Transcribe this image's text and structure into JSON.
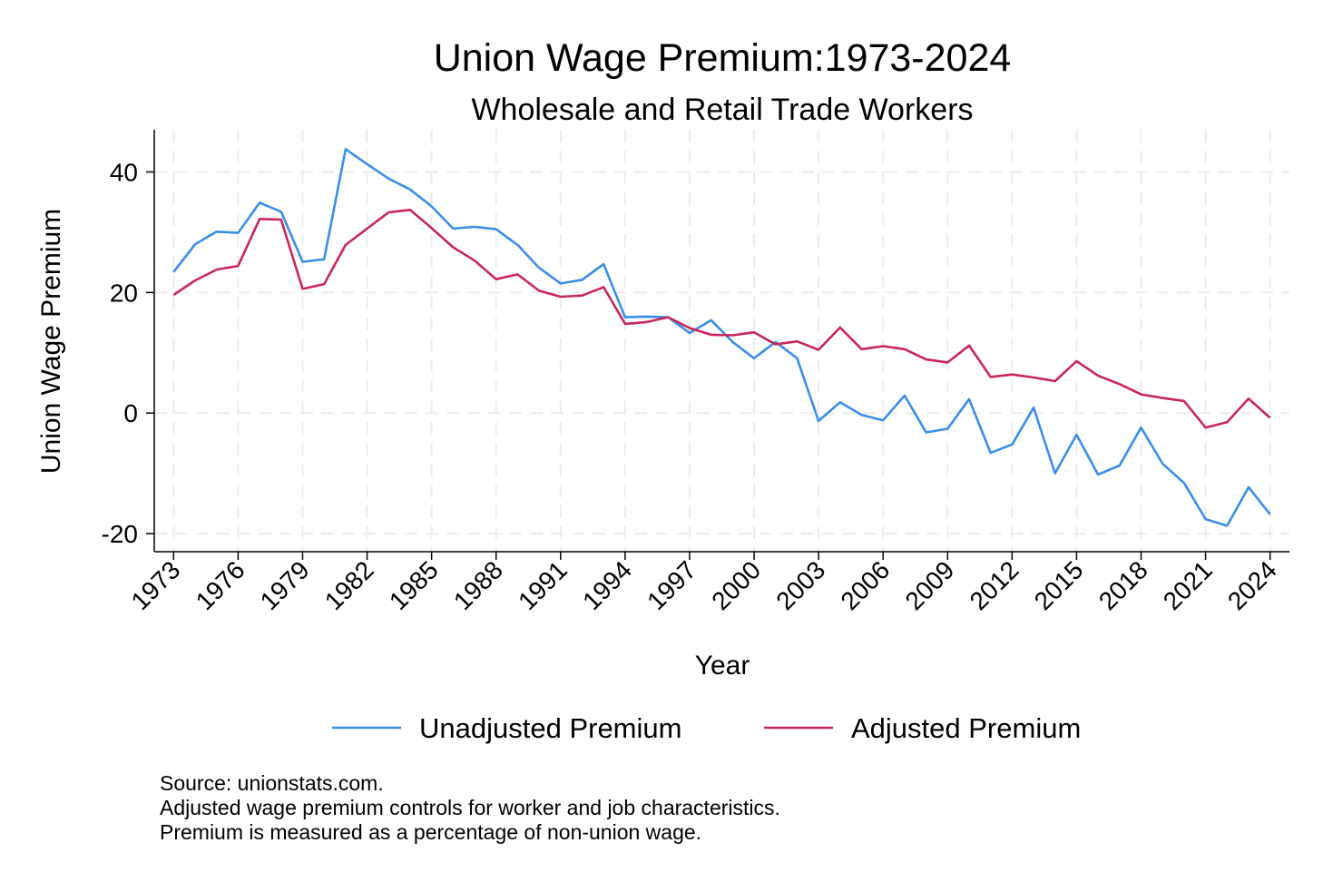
{
  "chart_data": {
    "type": "line",
    "title": "Union Wage Premium:1973-2024",
    "subtitle": "Wholesale and Retail Trade Workers",
    "xlabel": "Year",
    "ylabel": "Union Wage Premium",
    "x": [
      1973,
      1974,
      1975,
      1976,
      1977,
      1978,
      1979,
      1980,
      1981,
      1982,
      1983,
      1984,
      1985,
      1986,
      1987,
      1988,
      1989,
      1990,
      1991,
      1992,
      1993,
      1994,
      1995,
      1996,
      1997,
      1998,
      1999,
      2000,
      2001,
      2002,
      2003,
      2004,
      2005,
      2006,
      2007,
      2008,
      2009,
      2010,
      2011,
      2012,
      2013,
      2014,
      2015,
      2016,
      2017,
      2018,
      2019,
      2020,
      2021,
      2022,
      2023,
      2024
    ],
    "x_ticks": [
      1973,
      1976,
      1979,
      1982,
      1985,
      1988,
      1991,
      1994,
      1997,
      2000,
      2003,
      2006,
      2009,
      2012,
      2015,
      2018,
      2021,
      2024
    ],
    "y_ticks": [
      -20,
      0,
      20,
      40
    ],
    "xlim": [
      1972.1,
      2024.9
    ],
    "ylim": [
      -23,
      47
    ],
    "grid": true,
    "legend_position": "bottom",
    "series": [
      {
        "name": "Unadjusted Premium",
        "color": "#3a8ee8",
        "values": [
          23.4,
          28.0,
          30.1,
          29.9,
          34.9,
          33.4,
          25.1,
          25.5,
          43.8,
          41.3,
          38.9,
          37.1,
          34.3,
          30.6,
          30.9,
          30.5,
          27.9,
          24.1,
          21.5,
          22.1,
          24.7,
          15.9,
          16.0,
          15.9,
          13.3,
          15.4,
          11.8,
          9.1,
          11.8,
          9.1,
          -1.3,
          1.8,
          -0.3,
          -1.2,
          2.9,
          -3.2,
          -2.6,
          2.3,
          -6.6,
          -5.2,
          0.9,
          -10.0,
          -3.6,
          -10.2,
          -8.7,
          -2.4,
          -8.4,
          -11.6,
          -17.6,
          -18.7,
          -12.3,
          -16.8
        ]
      },
      {
        "name": "Adjusted Premium",
        "color": "#c8265a",
        "values": [
          19.6,
          22.0,
          23.8,
          24.4,
          32.2,
          32.1,
          20.6,
          21.4,
          27.9,
          30.6,
          33.3,
          33.7,
          30.7,
          27.5,
          25.3,
          22.2,
          23.0,
          20.3,
          19.3,
          19.5,
          20.9,
          14.8,
          15.1,
          15.9,
          14.1,
          13.0,
          12.9,
          13.4,
          11.4,
          11.9,
          10.5,
          14.2,
          10.6,
          11.1,
          10.6,
          8.9,
          8.4,
          11.2,
          6.0,
          6.4,
          5.9,
          5.3,
          8.6,
          6.2,
          4.8,
          3.1,
          2.5,
          2.0,
          -2.4,
          -1.5,
          2.4,
          -0.8
        ]
      }
    ]
  },
  "notes": [
    "Source: unionstats.com.",
    "Adjusted wage premium controls for worker and job characteristics.",
    "Premium is measured as a percentage of non-union wage."
  ]
}
